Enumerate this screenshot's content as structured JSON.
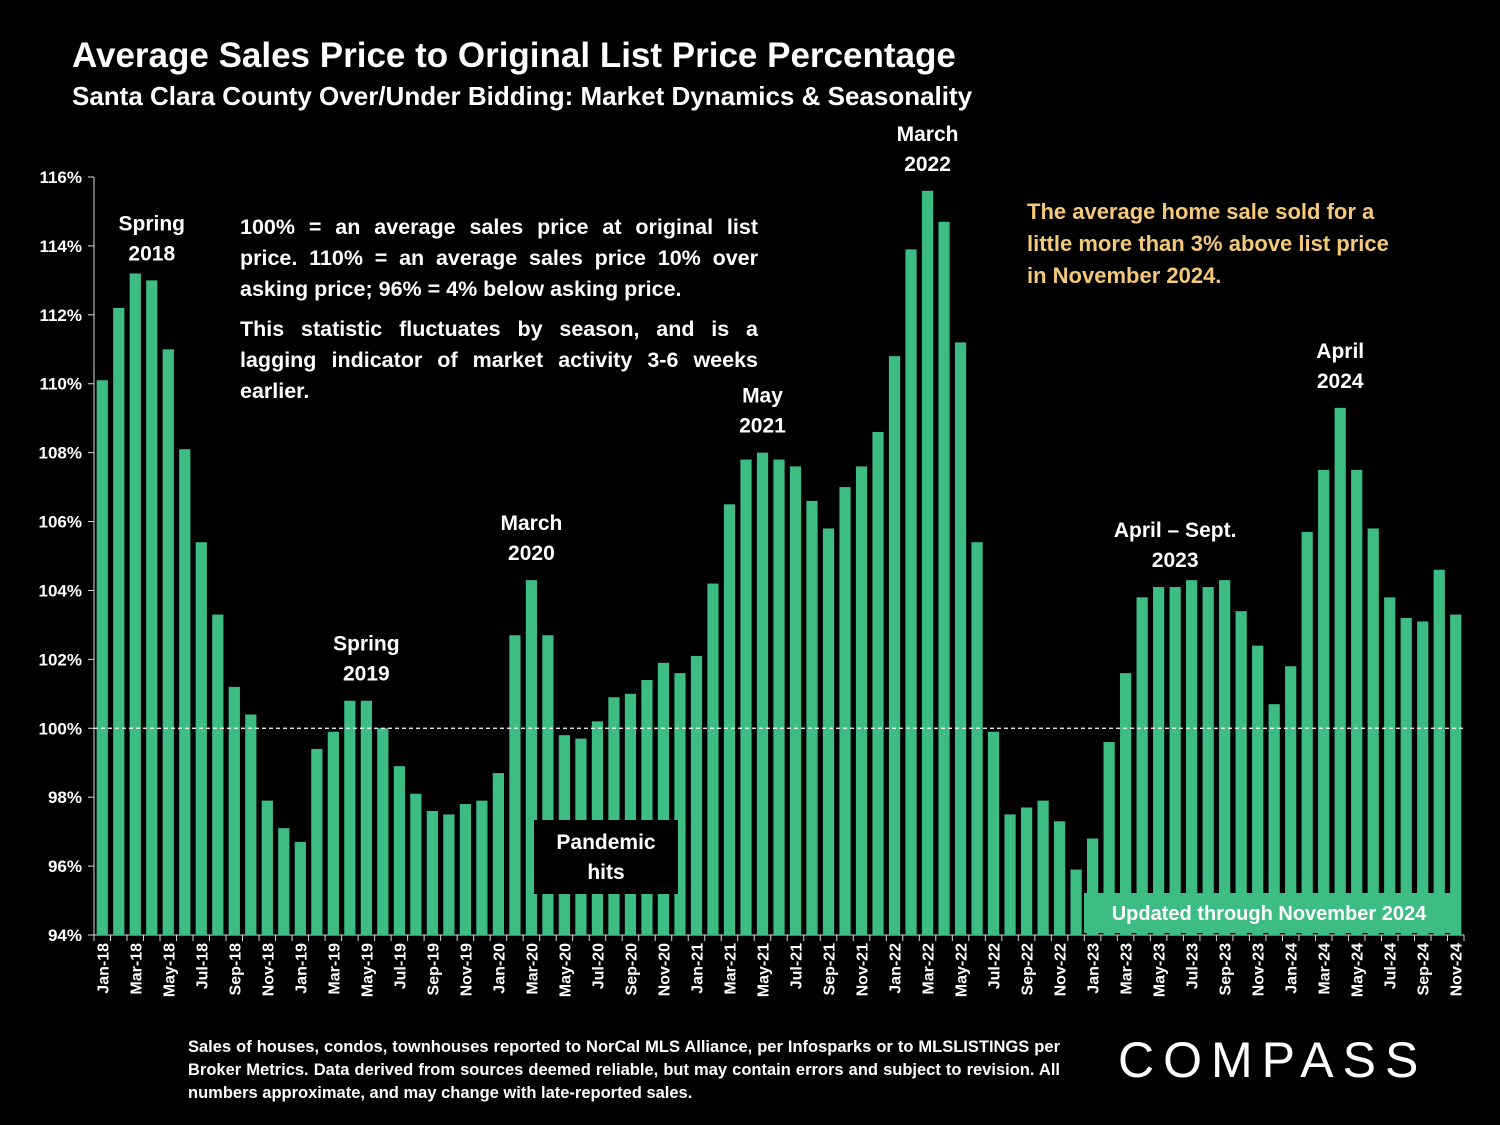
{
  "header": {
    "title": "Average Sales Price to Original List Price Percentage",
    "subtitle": "Santa Clara County Over/Under Bidding: Market Dynamics & Seasonality"
  },
  "notes": {
    "definition": "100% = an average sales price at original list price. 110% = an average sales price 10% over asking price; 96% = 4% below asking price.",
    "seasonality": "This statistic fluctuates by season, and is a lagging indicator of market activity 3-6 weeks earlier."
  },
  "callout": "The average home sale sold for a little more than 3% above list price in November 2024.",
  "footer": "Sales of houses, condos, townhouses reported to NorCal MLS Alliance, per Infosparks or to MLSLISTINGS per Broker Metrics. Data derived from sources deemed reliable, but may contain errors and subject to revision. All numbers approximate, and may change with late-reported sales.",
  "brand": "COMPASS",
  "colors": {
    "bar": "#3dbd84",
    "background": "#000000",
    "callout_text": "#f5c97a",
    "text": "#ffffff"
  },
  "chart_data": {
    "type": "bar",
    "title": "Average Sales Price to Original List Price Percentage",
    "ylim": [
      94,
      116
    ],
    "yticks": [
      "94%",
      "96%",
      "98%",
      "100%",
      "102%",
      "104%",
      "106%",
      "108%",
      "110%",
      "112%",
      "114%",
      "116%"
    ],
    "reference_line": 100,
    "categories": [
      "Jan-18",
      "Feb-18",
      "Mar-18",
      "Apr-18",
      "May-18",
      "Jun-18",
      "Jul-18",
      "Aug-18",
      "Sep-18",
      "Oct-18",
      "Nov-18",
      "Dec-18",
      "Jan-19",
      "Feb-19",
      "Mar-19",
      "Apr-19",
      "May-19",
      "Jun-19",
      "Jul-19",
      "Aug-19",
      "Sep-19",
      "Oct-19",
      "Nov-19",
      "Dec-19",
      "Jan-20",
      "Feb-20",
      "Mar-20",
      "Apr-20",
      "May-20",
      "Jun-20",
      "Jul-20",
      "Aug-20",
      "Sep-20",
      "Oct-20",
      "Nov-20",
      "Dec-20",
      "Jan-21",
      "Feb-21",
      "Mar-21",
      "Apr-21",
      "May-21",
      "Jun-21",
      "Jul-21",
      "Aug-21",
      "Sep-21",
      "Oct-21",
      "Nov-21",
      "Dec-21",
      "Jan-22",
      "Feb-22",
      "Mar-22",
      "Apr-22",
      "May-22",
      "Jun-22",
      "Jul-22",
      "Aug-22",
      "Sep-22",
      "Oct-22",
      "Nov-22",
      "Dec-22",
      "Jan-23",
      "Feb-23",
      "Mar-23",
      "Apr-23",
      "May-23",
      "Jun-23",
      "Jul-23",
      "Aug-23",
      "Sep-23",
      "Oct-23",
      "Nov-23",
      "Dec-23",
      "Jan-24",
      "Feb-24",
      "Mar-24",
      "Apr-24",
      "May-24",
      "Jun-24",
      "Jul-24",
      "Aug-24",
      "Sep-24",
      "Oct-24",
      "Nov-24"
    ],
    "xtick_labels": [
      "Jan-18",
      "Mar-18",
      "May-18",
      "Jul-18",
      "Sep-18",
      "Nov-18",
      "Jan-19",
      "Mar-19",
      "May-19",
      "Jul-19",
      "Sep-19",
      "Nov-19",
      "Jan-20",
      "Mar-20",
      "May-20",
      "Jul-20",
      "Sep-20",
      "Nov-20",
      "Jan-21",
      "Mar-21",
      "May-21",
      "Jul-21",
      "Sep-21",
      "Nov-21",
      "Jan-22",
      "Mar-22",
      "May-22",
      "Jul-22",
      "Sep-22",
      "Nov-22",
      "Jan-23",
      "Mar-23",
      "May-23",
      "Jul-23",
      "Sep-23",
      "Nov-23",
      "Jan-24",
      "Mar-24",
      "May-24",
      "Jul-24",
      "Sep-24",
      "Nov-24"
    ],
    "values": [
      110.1,
      112.2,
      113.2,
      113.0,
      111.0,
      108.1,
      105.4,
      103.3,
      101.2,
      100.4,
      97.9,
      97.1,
      96.7,
      99.4,
      99.9,
      100.8,
      100.8,
      100.0,
      98.9,
      98.1,
      97.6,
      97.5,
      97.8,
      97.9,
      98.7,
      102.7,
      104.3,
      102.7,
      99.8,
      99.7,
      100.2,
      100.9,
      101.0,
      101.4,
      101.9,
      101.6,
      102.1,
      104.2,
      106.5,
      107.8,
      108.0,
      107.8,
      107.6,
      106.6,
      105.8,
      107.0,
      107.6,
      108.6,
      110.8,
      113.9,
      115.6,
      114.7,
      111.2,
      105.4,
      99.9,
      97.5,
      97.7,
      97.9,
      97.3,
      95.9,
      96.8,
      99.6,
      101.6,
      103.8,
      104.1,
      104.1,
      104.3,
      104.1,
      104.3,
      103.4,
      102.4,
      100.7,
      101.8,
      105.7,
      107.5,
      109.3,
      107.5,
      105.8,
      103.8,
      103.2,
      103.1,
      104.6,
      103.3
    ],
    "annotations": [
      {
        "index": 3,
        "lines": [
          "Spring",
          "2018"
        ]
      },
      {
        "index": 16,
        "lines": [
          "Spring",
          "2019"
        ]
      },
      {
        "index": 26,
        "lines": [
          "March",
          "2020"
        ]
      },
      {
        "index": 40,
        "lines": [
          "May",
          "2021"
        ]
      },
      {
        "index": 50,
        "lines": [
          "March",
          "2022"
        ]
      },
      {
        "index": 65,
        "lines": [
          "April – Sept.",
          "2023"
        ]
      },
      {
        "index": 75,
        "lines": [
          "April",
          "2024"
        ]
      },
      {
        "index": 30,
        "lines": [
          "Pandemic",
          "hits"
        ],
        "boxed": true
      }
    ],
    "updated_label": "Updated through November 2024"
  }
}
